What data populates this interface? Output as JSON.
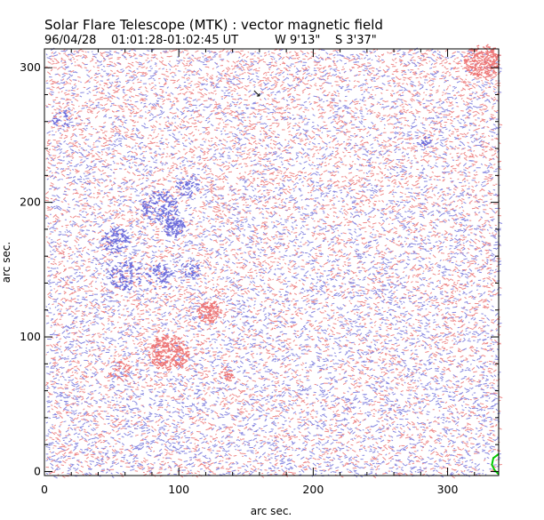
{
  "chart_data": {
    "type": "vector_magnetogram",
    "title": "Solar Flare Telescope (MTK) : vector magnetic field",
    "subtitle": {
      "date": "96/04/28",
      "time_range": "01:01:28-01:02:45 UT",
      "longitude": "W 9'13\"",
      "latitude": "S 3'37\""
    },
    "xlabel": "arc sec.",
    "ylabel": "arc sec.",
    "xlim": [
      0,
      338
    ],
    "ylim": [
      -3,
      314
    ],
    "xticks": [
      0,
      100,
      200,
      300
    ],
    "yticks": [
      0,
      100,
      200,
      300
    ],
    "x_tick_labels": [
      "0",
      "100",
      "200",
      "300"
    ],
    "y_tick_labels": [
      "0",
      "100",
      "200",
      "300"
    ],
    "background_hatch": {
      "description": "dense short field vectors covering the whole map",
      "positive_color": "#ee8888",
      "negative_color": "#8888e0"
    },
    "polarity_regions": [
      {
        "polarity": "negative",
        "center": [
          96,
          181
        ],
        "radius": 8,
        "intensity": 1.0
      },
      {
        "polarity": "negative",
        "center": [
          85,
          197
        ],
        "radius": 14,
        "intensity": 0.5
      },
      {
        "polarity": "negative",
        "center": [
          106,
          212
        ],
        "radius": 9,
        "intensity": 0.5
      },
      {
        "polarity": "negative",
        "center": [
          52,
          172
        ],
        "radius": 10,
        "intensity": 0.7
      },
      {
        "polarity": "negative",
        "center": [
          60,
          145
        ],
        "radius": 12,
        "intensity": 0.55
      },
      {
        "polarity": "negative",
        "center": [
          85,
          145
        ],
        "radius": 10,
        "intensity": 0.5
      },
      {
        "polarity": "negative",
        "center": [
          108,
          150
        ],
        "radius": 7,
        "intensity": 0.45
      },
      {
        "polarity": "negative",
        "center": [
          282,
          245
        ],
        "radius": 5,
        "intensity": 0.6
      },
      {
        "polarity": "negative",
        "center": [
          12,
          262
        ],
        "radius": 7,
        "intensity": 0.4
      },
      {
        "polarity": "positive",
        "center": [
          122,
          118
        ],
        "radius": 9,
        "intensity": 1.0
      },
      {
        "polarity": "positive",
        "center": [
          92,
          88
        ],
        "radius": 15,
        "intensity": 0.9
      },
      {
        "polarity": "positive",
        "center": [
          135,
          72
        ],
        "radius": 6,
        "intensity": 0.6
      },
      {
        "polarity": "positive",
        "center": [
          55,
          75
        ],
        "radius": 8,
        "intensity": 0.5
      },
      {
        "polarity": "positive",
        "center": [
          325,
          305
        ],
        "radius": 14,
        "intensity": 0.9
      }
    ],
    "annotations": [
      {
        "type": "arrow",
        "color": "#000000",
        "from": [
          156,
          283
        ],
        "to": [
          160,
          279
        ]
      },
      {
        "type": "limb_curve",
        "color": "#00cc00",
        "points": [
          [
            338,
            13
          ],
          [
            334,
            10
          ],
          [
            333,
            5
          ],
          [
            335,
            1
          ],
          [
            338,
            -2
          ]
        ]
      }
    ]
  }
}
